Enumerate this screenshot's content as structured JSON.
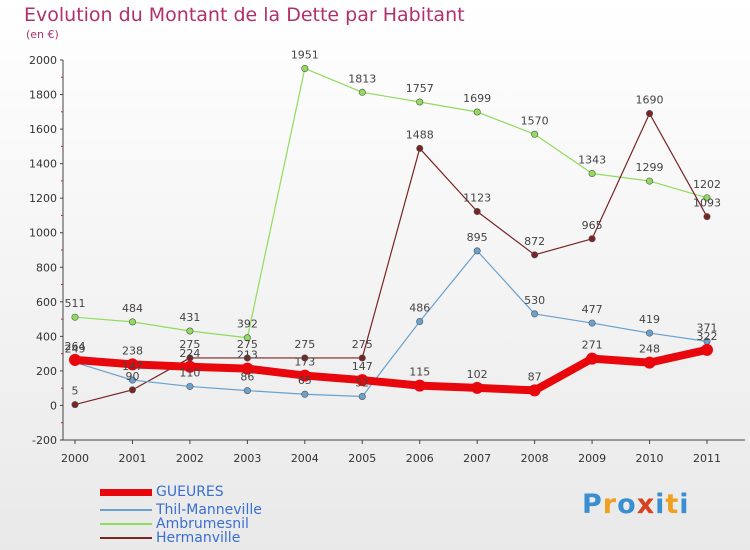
{
  "chart_data": {
    "type": "line",
    "title": "Evolution du Montant de la Dette par Habitant",
    "subtitle": "(en €)",
    "categories": [
      "2000",
      "2001",
      "2002",
      "2003",
      "2004",
      "2005",
      "2006",
      "2007",
      "2008",
      "2009",
      "2010",
      "2011"
    ],
    "ylim": [
      -200,
      2000
    ],
    "yticks": [
      -200,
      0,
      200,
      400,
      600,
      800,
      1000,
      1200,
      1400,
      1600,
      1800,
      2000
    ],
    "grid": false,
    "legend_position": "bottom-left",
    "series": [
      {
        "name": "GUEURES",
        "color": "#e8070c",
        "values": [
          264,
          238,
          224,
          213,
          173,
          147,
          115,
          102,
          87,
          271,
          248,
          322
        ]
      },
      {
        "name": "Thil-Manneville",
        "color": "#6ba1ce",
        "values": [
          249,
          147,
          110,
          86,
          65,
          52,
          486,
          895,
          530,
          477,
          419,
          371
        ]
      },
      {
        "name": "Ambrumesnil",
        "color": "#90dc5c",
        "values": [
          511,
          484,
          431,
          392,
          1951,
          1813,
          1757,
          1699,
          1570,
          1343,
          1299,
          1202
        ]
      },
      {
        "name": "Hermanville",
        "color": "#7a2424",
        "values": [
          5,
          90,
          275,
          275,
          275,
          275,
          1488,
          1123,
          872,
          965,
          1690,
          1093
        ]
      }
    ]
  },
  "logo": {
    "letters": [
      "P",
      "r",
      "o",
      "x",
      "i",
      "t",
      "i"
    ],
    "colors": [
      "#3a8fd0",
      "#f0a020",
      "#3a8fd0",
      "#d84020",
      "#3a8fd0",
      "#f0a020",
      "#3a8fd0"
    ]
  }
}
